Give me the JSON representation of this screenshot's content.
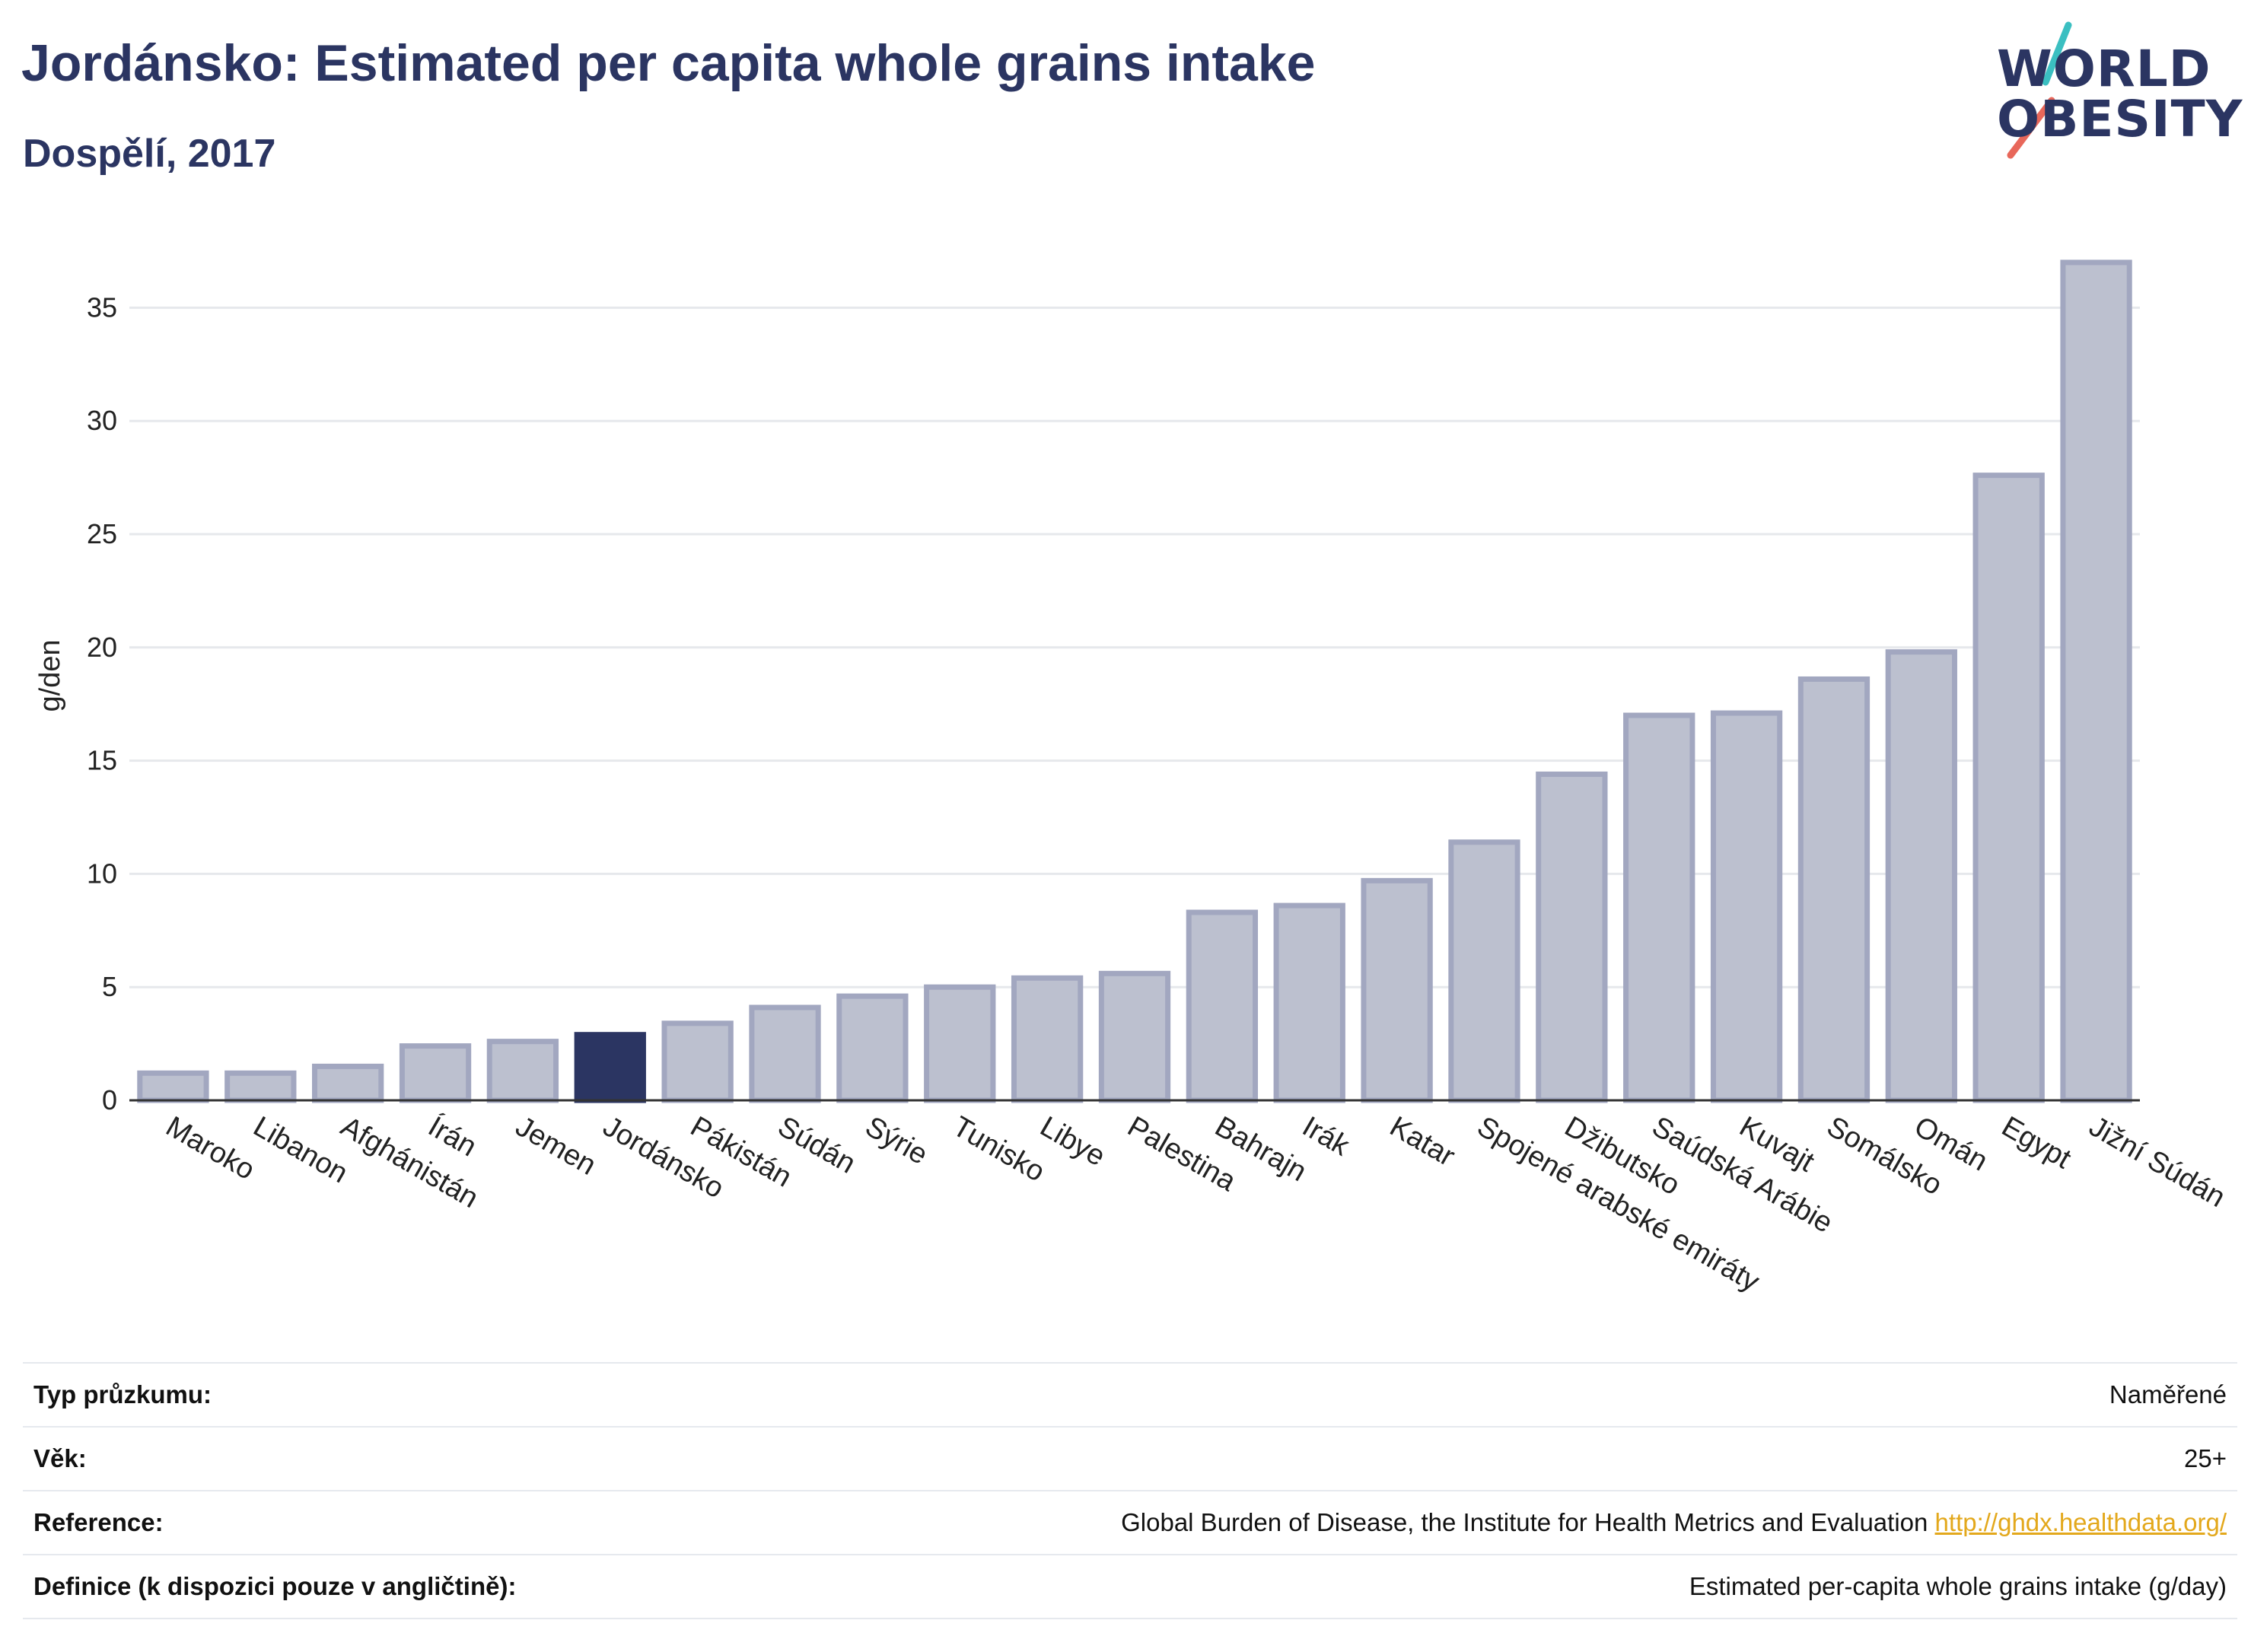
{
  "header": {
    "title": "Jordánsko: Estimated per capita whole grains intake",
    "subtitle": "Dospělí, 2017"
  },
  "logo": {
    "line1": "WORLD",
    "line2": "OBESITY",
    "accent_teal": "#3bbfc1",
    "accent_red": "#e8675a"
  },
  "chart_data": {
    "type": "bar",
    "ylabel": "g/den",
    "ylim": [
      0,
      37.5
    ],
    "yticks": [
      0,
      5,
      10,
      15,
      20,
      25,
      30,
      35
    ],
    "grid": true,
    "highlight": "Jordánsko",
    "colors": {
      "bar": "#bcc0cf",
      "bar_border": "#a2a7c0",
      "highlight": "#2b3562",
      "grid": "#e6e8ec",
      "axis": "#333333"
    },
    "categories": [
      "Maroko",
      "Libanon",
      "Afghánistán",
      "Írán",
      "Jemen",
      "Jordánsko",
      "Pákistán",
      "Súdán",
      "Sýrie",
      "Tunisko",
      "Libye",
      "Palestina",
      "Bahrajn",
      "Irák",
      "Katar",
      "Spojené arabské emiráty",
      "Džibutsko",
      "Saúdská Arábie",
      "Kuvajt",
      "Somálsko",
      "Omán",
      "Egypt",
      "Jižní Súdán"
    ],
    "values": [
      1.2,
      1.2,
      1.5,
      2.4,
      2.6,
      2.9,
      3.4,
      4.1,
      4.6,
      5.0,
      5.4,
      5.6,
      8.3,
      8.6,
      9.7,
      11.4,
      14.4,
      17.0,
      17.1,
      18.6,
      19.8,
      27.6,
      37.0
    ]
  },
  "meta": {
    "rows": [
      {
        "label": "Typ průzkumu:",
        "value": "Naměřené"
      },
      {
        "label": "Věk:",
        "value": "25+"
      },
      {
        "label": "Reference:",
        "value": "Global Burden of Disease, the Institute for Health Metrics and Evaluation",
        "link": "http://ghdx.healthdata.org/"
      },
      {
        "label": "Definice (k dispozici pouze v angličtině):",
        "value": "Estimated per-capita whole grains intake (g/day)"
      }
    ]
  }
}
